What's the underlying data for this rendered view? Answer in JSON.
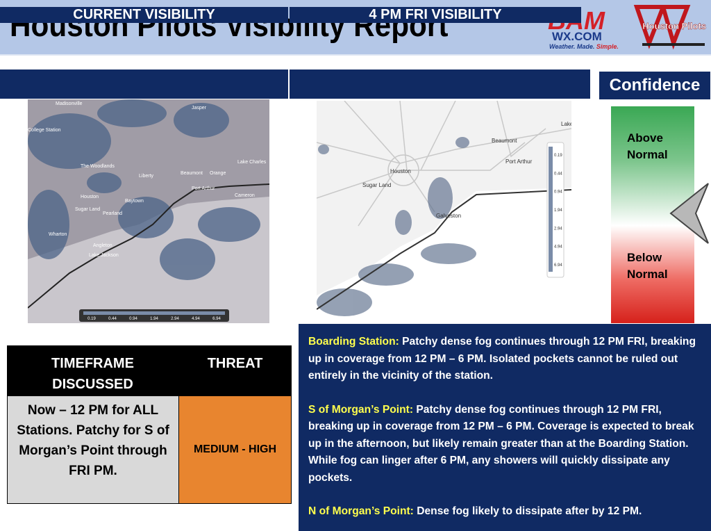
{
  "header": {
    "title": "Houston Pilots Visibility Report",
    "logo": "BAM",
    "logo_domain": "WX.COM",
    "tagline": "Weather. Made.",
    "tagline_end": "Simple.",
    "partner": "Houston Pilots"
  },
  "panels": {
    "current": {
      "title": "CURRENT VISIBILITY",
      "map_labels": [
        "Madisonville",
        "Jasper",
        "College Station",
        "The Woodlands",
        "Liberty",
        "Beaumont",
        "Orange",
        "Lake Charles",
        "Houston",
        "Baytown",
        "Port Arthur",
        "Cameron",
        "Sugar Land",
        "Pearland",
        "Wharton",
        "Angleton",
        "Lake Jackson"
      ],
      "legend": [
        0.19,
        0.44,
        0.94,
        1.94,
        2.94,
        4.94,
        6.94
      ]
    },
    "forecast": {
      "title": "4 PM FRI VISIBILITY",
      "map_labels": [
        "Lake",
        "Beaumont",
        "Port Arthur",
        "Houston",
        "Sugar Land",
        "Galveston"
      ],
      "legend": [
        0.19,
        0.44,
        0.94,
        1.94,
        2.94,
        4.94,
        6.94
      ]
    }
  },
  "confidence": {
    "title": "Confidence",
    "above": "Above Normal",
    "below": "Below Normal"
  },
  "table": {
    "headers": [
      "TIMEFRAME DISCUSSED",
      "THREAT"
    ],
    "rows": [
      [
        "Now – 12 PM for ALL Stations. Patchy for S of Morgan’s Point through FRI PM.",
        "MEDIUM - HIGH"
      ]
    ]
  },
  "notes": [
    {
      "label": "Boarding Station:",
      "text": "Patchy dense fog continues through 12 PM FRI, breaking up in coverage from 12 PM – 6 PM. Isolated pockets cannot be ruled out entirely in the vicinity of the station."
    },
    {
      "label": "S of Morgan’s Point:",
      "text": "Patchy dense fog continues through 12 PM FRI, breaking up in coverage from 12 PM – 6 PM. Coverage is expected to break up in the afternoon, but likely remain greater than at the Boarding Station. While fog can linger after 6 PM, any showers will quickly dissipate any pockets."
    },
    {
      "label": "N of Morgan’s Point:",
      "text": "Dense fog likely to dissipate after by 12 PM."
    }
  ]
}
